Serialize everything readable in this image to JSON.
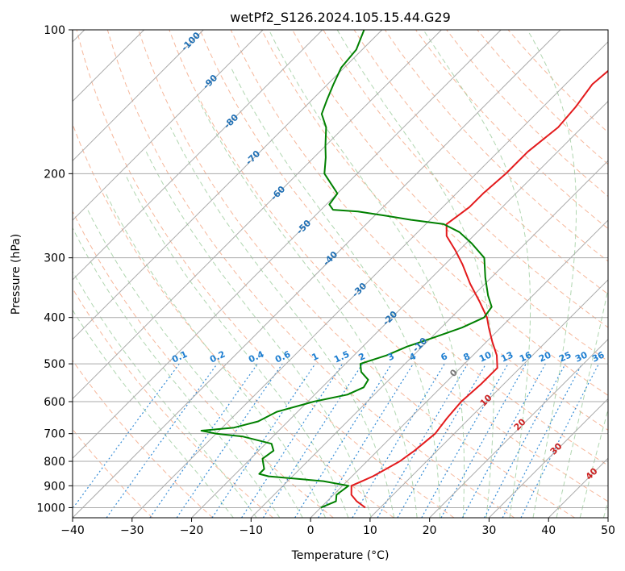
{
  "chart_data": {
    "type": "line",
    "title": "wetPf2_S126.2024.105.15.44.G29",
    "xlabel": "Temperature (°C)",
    "ylabel": "Pressure (hPa)",
    "xlim": [
      -40,
      50
    ],
    "ylim": [
      1050,
      100
    ],
    "y_scale": "log",
    "x_ticks": [
      -40,
      -30,
      -20,
      -10,
      0,
      10,
      20,
      30,
      40,
      50
    ],
    "y_ticks": [
      100,
      200,
      300,
      400,
      500,
      600,
      700,
      800,
      900,
      1000
    ],
    "grid": true,
    "skew_t": true,
    "series": [
      {
        "name": "",
        "color": "#e31a1c",
        "p": [
          1000,
          970,
          940,
          900,
          880,
          860,
          830,
          800,
          760,
          700,
          650,
          600,
          550,
          510,
          480,
          450,
          420,
          400,
          370,
          340,
          310,
          290,
          270,
          255,
          245,
          235,
          220,
          200,
          180,
          160,
          145,
          130,
          120,
          110,
          100
        ],
        "t": [
          7.5,
          5.0,
          3.0,
          1.5,
          2.5,
          3.5,
          4.5,
          5.5,
          6.2,
          6.8,
          6.2,
          5.8,
          6.2,
          6.2,
          4.0,
          1.0,
          -2.0,
          -4.0,
          -8.0,
          -12.5,
          -17.0,
          -20.5,
          -24.5,
          -26.5,
          -26.0,
          -25.5,
          -25.5,
          -25.0,
          -25.0,
          -24.0,
          -24.5,
          -25.5,
          -25.0,
          -24.5,
          -25.0
        ]
      },
      {
        "name": "",
        "color": "#008000",
        "p": [
          1000,
          970,
          940,
          900,
          880,
          860,
          850,
          830,
          810,
          790,
          760,
          735,
          710,
          700,
          690,
          680,
          660,
          630,
          600,
          580,
          560,
          540,
          520,
          500,
          480,
          460,
          440,
          420,
          400,
          380,
          360,
          330,
          300,
          280,
          265,
          255,
          250,
          245,
          240,
          238,
          232,
          220,
          200,
          185,
          175,
          160,
          150,
          140,
          130,
          120,
          110,
          100
        ],
        "t": [
          0.0,
          1.5,
          0.5,
          1.0,
          -4.0,
          -14.0,
          -16.0,
          -16.0,
          -17.0,
          -18.0,
          -17.5,
          -19.0,
          -25.0,
          -30.0,
          -33.0,
          -28.0,
          -25.0,
          -23.5,
          -19.0,
          -14.5,
          -13.0,
          -13.5,
          -16.0,
          -17.5,
          -14.5,
          -12.5,
          -9.5,
          -6.5,
          -4.5,
          -5.0,
          -7.5,
          -11.0,
          -14.5,
          -19.0,
          -23.0,
          -27.0,
          -33.0,
          -38.0,
          -43.5,
          -48.0,
          -49.5,
          -50.0,
          -55.5,
          -58.0,
          -60.0,
          -63.0,
          -66.0,
          -67.5,
          -69.0,
          -70.5,
          -71.0,
          -73.0
        ]
      }
    ],
    "dry_adiabat_labels": [
      -100,
      -90,
      -80,
      -70,
      -60,
      -50,
      -40,
      -30,
      -20,
      -10
    ],
    "mixing_ratio_labels": [
      "0.1",
      "0.2",
      "0.4",
      "0.6",
      "1",
      "1.5",
      "2",
      "3",
      "4",
      "6",
      "8",
      "10",
      "13",
      "16",
      "20",
      "25",
      "30",
      "36"
    ],
    "moist_adiabat_labels": [
      0,
      10,
      20,
      30,
      40
    ]
  },
  "colors": {
    "temperature": "#e31a1c",
    "dewpoint": "#008000",
    "isotherm": "#aaaaaa",
    "dry_adiabat": "#f4a582",
    "moist_adiabat": "#9ccc9c",
    "mixing_ratio": "#1f7fd1",
    "dry_label": "#1f6fb4",
    "moist_label": "#cc2222"
  }
}
